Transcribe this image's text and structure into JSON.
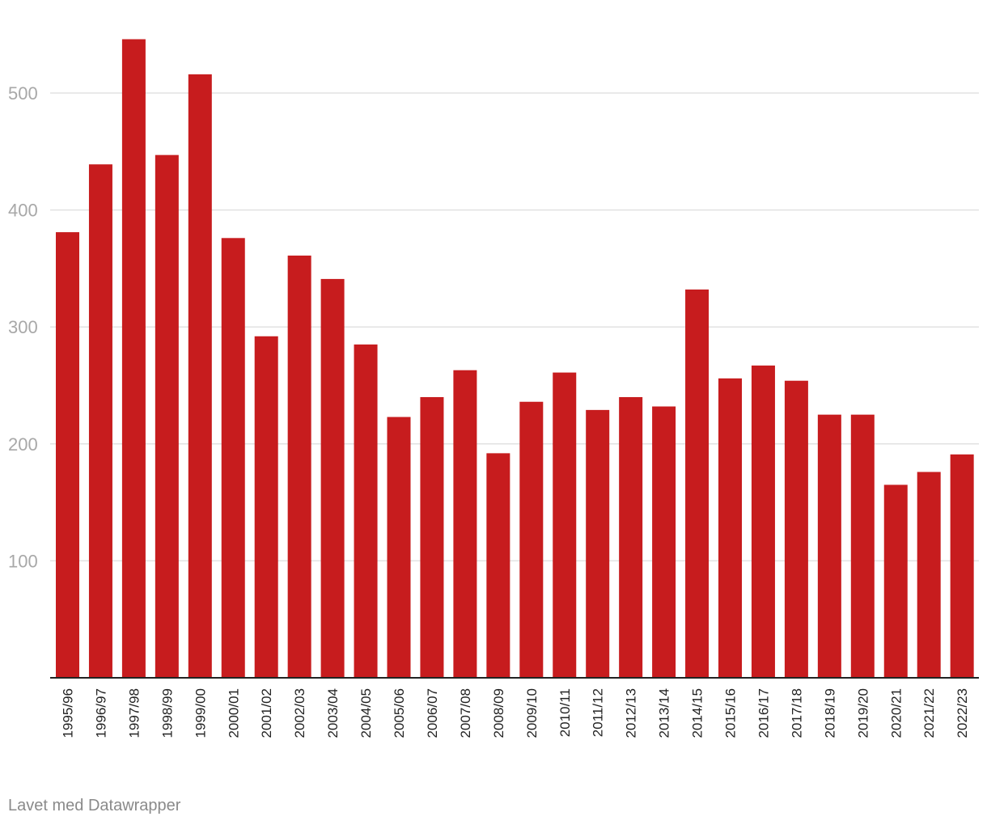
{
  "chart_data": {
    "type": "bar",
    "title": "",
    "xlabel": "",
    "ylabel": "",
    "ylim": [
      0,
      550
    ],
    "yticks": [
      100,
      200,
      300,
      400,
      500
    ],
    "grid": true,
    "bar_color": "#c71c1e",
    "categories": [
      "1995/96",
      "1996/97",
      "1997/98",
      "1998/99",
      "1999/00",
      "2000/01",
      "2001/02",
      "2002/03",
      "2003/04",
      "2004/05",
      "2005/06",
      "2006/07",
      "2007/08",
      "2008/09",
      "2009/10",
      "2010/11",
      "2011/12",
      "2012/13",
      "2013/14",
      "2014/15",
      "2015/16",
      "2016/17",
      "2017/18",
      "2018/19",
      "2019/20",
      "2020/21",
      "2021/22",
      "2022/23"
    ],
    "values": [
      381,
      439,
      546,
      447,
      516,
      376,
      292,
      361,
      341,
      285,
      223,
      240,
      263,
      192,
      236,
      261,
      229,
      240,
      232,
      332,
      256,
      267,
      254,
      225,
      225,
      165,
      176,
      191
    ]
  },
  "footer": {
    "credit": "Lavet med Datawrapper"
  }
}
